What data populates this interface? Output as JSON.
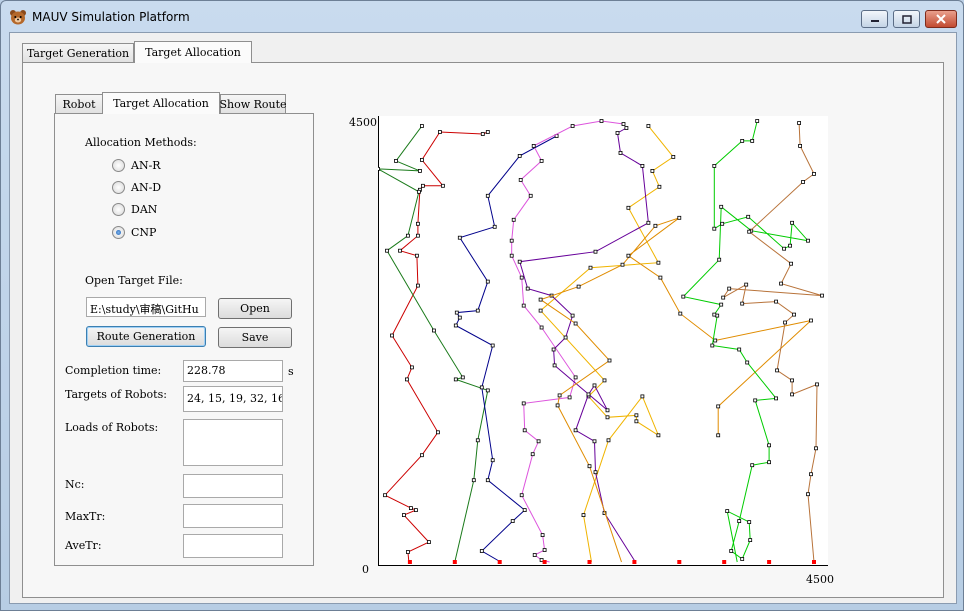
{
  "window": {
    "title": "MAUV Simulation Platform"
  },
  "outer_tabs": [
    "Target Generation",
    "Target Allocation"
  ],
  "inner_tabs": [
    "Robot",
    "Target Allocation",
    "Show Route"
  ],
  "allocation": {
    "methods_label": "Allocation Methods:",
    "methods": [
      "AN-R",
      "AN-D",
      "DAN",
      "CNP"
    ],
    "selected": "CNP",
    "open_file_label": "Open Target File:",
    "file_path": "E:\\study\\审稿\\GitHu",
    "open_button": "Open",
    "route_button": "Route Generation",
    "save_button": "Save"
  },
  "results": {
    "completion_label": "Completion time:",
    "completion_value": "228.78",
    "completion_unit": "s",
    "targets_label": "Targets of Robots:",
    "targets_value": "24, 15, 19, 32, 16,",
    "loads_label": "Loads of Robots:",
    "loads_value": "",
    "nc_label": "Nc:",
    "nc_value": "",
    "maxtr_label": "MaxTr:",
    "maxtr_value": "",
    "avetr_label": "AveTr:",
    "avetr_value": ""
  },
  "chart_data": {
    "type": "line",
    "title": "",
    "xlabel": "",
    "ylabel": "",
    "xlim": [
      0,
      4500
    ],
    "ylim": [
      0,
      4500
    ],
    "tick_labels": {
      "y_top": "4500",
      "origin": "0",
      "x_right": "4500"
    },
    "depots": [
      [
        320,
        30
      ],
      [
        770,
        30
      ],
      [
        1220,
        30
      ],
      [
        1670,
        30
      ],
      [
        2120,
        30
      ],
      [
        2570,
        30
      ],
      [
        3020,
        30
      ],
      [
        3470,
        30
      ],
      [
        3920,
        30
      ],
      [
        4370,
        30
      ]
    ],
    "series": [
      {
        "color": "#cc0000",
        "points": [
          [
            310,
            30
          ],
          [
            300,
            130
          ],
          [
            510,
            230
          ],
          [
            260,
            500
          ],
          [
            380,
            550
          ],
          [
            330,
            570
          ],
          [
            70,
            700
          ],
          [
            440,
            1100
          ],
          [
            600,
            1330
          ],
          [
            290,
            1860
          ],
          [
            340,
            1980
          ],
          [
            140,
            2300
          ],
          [
            400,
            2800
          ],
          [
            390,
            3100
          ],
          [
            220,
            3150
          ],
          [
            400,
            3300
          ],
          [
            400,
            3420
          ],
          [
            420,
            3760
          ],
          [
            450,
            3800
          ],
          [
            650,
            3800
          ],
          [
            440,
            4060
          ],
          [
            620,
            4340
          ],
          [
            1050,
            4320
          ],
          [
            1100,
            4340
          ]
        ]
      },
      {
        "color": "#1a7a1a",
        "points": [
          [
            770,
            30
          ],
          [
            960,
            850
          ],
          [
            1000,
            1250
          ],
          [
            1100,
            1750
          ],
          [
            780,
            1860
          ],
          [
            850,
            1880
          ],
          [
            560,
            2350
          ],
          [
            90,
            3150
          ],
          [
            300,
            3300
          ],
          [
            410,
            3740
          ],
          [
            0,
            3970
          ],
          [
            420,
            3950
          ],
          [
            180,
            4050
          ],
          [
            440,
            4400
          ]
        ]
      },
      {
        "color": "#00008b",
        "points": [
          [
            1230,
            30
          ],
          [
            1040,
            140
          ],
          [
            1350,
            440
          ],
          [
            1470,
            550
          ],
          [
            1100,
            850
          ],
          [
            1150,
            1050
          ],
          [
            1040,
            1780
          ],
          [
            1150,
            2200
          ],
          [
            780,
            2400
          ],
          [
            820,
            2480
          ],
          [
            790,
            2530
          ],
          [
            1000,
            2550
          ],
          [
            1100,
            2840
          ],
          [
            820,
            3280
          ],
          [
            1170,
            3390
          ],
          [
            1100,
            3700
          ],
          [
            1420,
            4100
          ],
          [
            1790,
            4300
          ]
        ]
      },
      {
        "color": "#dd55dd",
        "points": [
          [
            1720,
            30
          ],
          [
            1640,
            50
          ],
          [
            1570,
            100
          ],
          [
            1670,
            150
          ],
          [
            1650,
            300
          ],
          [
            1440,
            700
          ],
          [
            1550,
            1110
          ],
          [
            1610,
            1240
          ],
          [
            1470,
            1350
          ],
          [
            1460,
            1620
          ],
          [
            1920,
            1680
          ],
          [
            1980,
            1880
          ],
          [
            1640,
            2380
          ],
          [
            1460,
            2600
          ],
          [
            1440,
            2880
          ],
          [
            1340,
            3100
          ],
          [
            1340,
            3250
          ],
          [
            1360,
            3460
          ],
          [
            1530,
            3700
          ],
          [
            1430,
            3860
          ],
          [
            1640,
            4050
          ],
          [
            1560,
            4200
          ],
          [
            1950,
            4400
          ],
          [
            2240,
            4450
          ],
          [
            2460,
            4420
          ]
        ]
      },
      {
        "color": "#f0b400",
        "points": [
          [
            2140,
            30
          ],
          [
            2060,
            500
          ],
          [
            2310,
            1250
          ],
          [
            2650,
            1690
          ],
          [
            2810,
            1300
          ],
          [
            2590,
            1440
          ],
          [
            2590,
            1500
          ],
          [
            2300,
            1480
          ],
          [
            2110,
            1690
          ],
          [
            2270,
            1850
          ],
          [
            1630,
            2550
          ],
          [
            2130,
            2980
          ],
          [
            2810,
            3030
          ],
          [
            2510,
            3580
          ],
          [
            2820,
            3790
          ],
          [
            2750,
            3950
          ],
          [
            2960,
            4090
          ],
          [
            2710,
            4400
          ]
        ]
      },
      {
        "color": "#660099",
        "points": [
          [
            2580,
            30
          ],
          [
            2270,
            520
          ],
          [
            2180,
            930
          ],
          [
            2170,
            1240
          ],
          [
            1980,
            1350
          ],
          [
            2110,
            1710
          ],
          [
            2170,
            1800
          ],
          [
            2300,
            1550
          ],
          [
            1770,
            2000
          ],
          [
            1760,
            2160
          ],
          [
            1880,
            2280
          ],
          [
            1950,
            2500
          ],
          [
            1740,
            2700
          ],
          [
            1500,
            2770
          ],
          [
            1420,
            3040
          ],
          [
            2180,
            3140
          ],
          [
            2710,
            3430
          ],
          [
            2650,
            4000
          ],
          [
            2430,
            4130
          ],
          [
            2400,
            4330
          ],
          [
            2490,
            4380
          ]
        ]
      },
      {
        "color": "#e08c00",
        "points": [
          [
            2440,
            30
          ],
          [
            2120,
            990
          ],
          [
            1800,
            1600
          ],
          [
            1820,
            1700
          ],
          [
            2320,
            2050
          ],
          [
            1980,
            2420
          ],
          [
            1630,
            2660
          ],
          [
            2010,
            2790
          ],
          [
            2450,
            3010
          ],
          [
            2780,
            3400
          ],
          [
            3020,
            3480
          ],
          [
            2510,
            3100
          ],
          [
            2830,
            2880
          ],
          [
            3030,
            2520
          ],
          [
            3380,
            2250
          ],
          [
            4340,
            2450
          ],
          [
            3410,
            1590
          ],
          [
            3410,
            1300
          ]
        ]
      },
      {
        "color": "#00cc00",
        "points": [
          [
            3600,
            30
          ],
          [
            3500,
            540
          ],
          [
            3720,
            430
          ],
          [
            3730,
            250
          ],
          [
            3650,
            60
          ],
          [
            3540,
            140
          ],
          [
            3620,
            440
          ],
          [
            3750,
            1000
          ],
          [
            3920,
            1030
          ],
          [
            3920,
            1200
          ],
          [
            3780,
            1650
          ],
          [
            3990,
            1670
          ],
          [
            3700,
            2030
          ],
          [
            3620,
            2160
          ],
          [
            3350,
            2200
          ],
          [
            3400,
            2500
          ],
          [
            3370,
            2510
          ],
          [
            3440,
            2610
          ],
          [
            3060,
            2690
          ],
          [
            3420,
            3060
          ],
          [
            3440,
            3590
          ],
          [
            3740,
            3350
          ],
          [
            4310,
            3250
          ],
          [
            4150,
            3430
          ],
          [
            4130,
            3200
          ],
          [
            4070,
            3170
          ],
          [
            3710,
            3490
          ],
          [
            3450,
            3420
          ],
          [
            3370,
            3370
          ],
          [
            3370,
            4000
          ],
          [
            3650,
            4250
          ],
          [
            3750,
            4250
          ],
          [
            3800,
            4450
          ]
        ]
      },
      {
        "color": "#b8733a",
        "points": [
          [
            4370,
            30
          ],
          [
            4310,
            710
          ],
          [
            4340,
            910
          ],
          [
            4390,
            1170
          ],
          [
            4400,
            1810
          ],
          [
            4150,
            1710
          ],
          [
            4150,
            1850
          ],
          [
            4000,
            1950
          ],
          [
            4080,
            2430
          ],
          [
            4170,
            2510
          ],
          [
            3990,
            2640
          ],
          [
            3650,
            2620
          ],
          [
            3690,
            2810
          ],
          [
            3460,
            2680
          ],
          [
            3520,
            2770
          ],
          [
            4450,
            2700
          ],
          [
            4040,
            2820
          ],
          [
            4140,
            3020
          ],
          [
            3720,
            3340
          ],
          [
            4260,
            3840
          ],
          [
            4370,
            3920
          ],
          [
            4230,
            4200
          ],
          [
            4220,
            4430
          ]
        ]
      }
    ]
  }
}
